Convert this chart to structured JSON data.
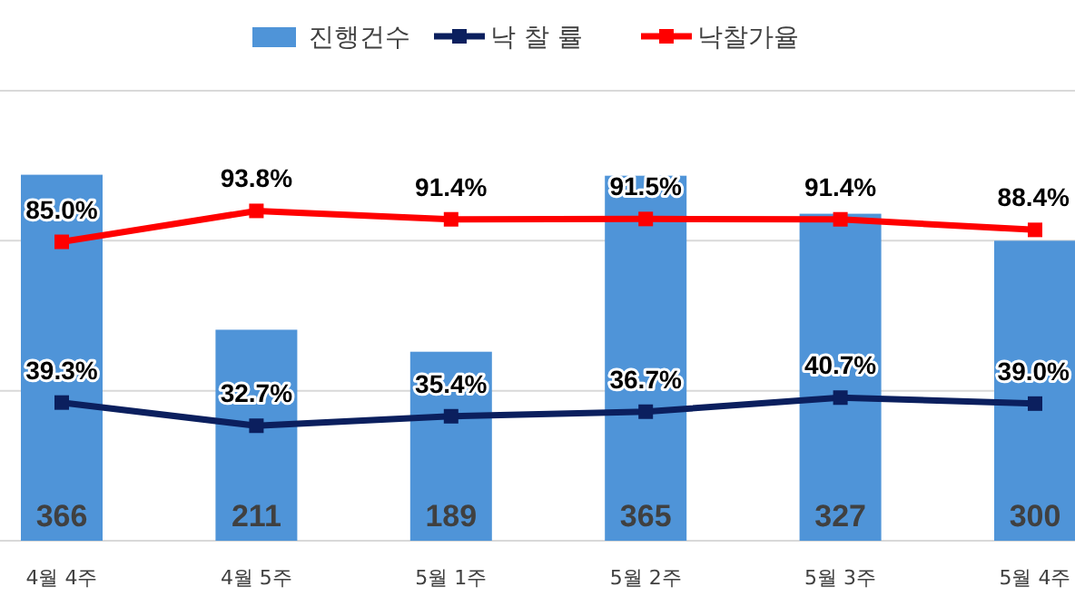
{
  "chart_data": {
    "type": "bar",
    "categories": [
      "4월 4주",
      "4월 5주",
      "5월 1주",
      "5월 2주",
      "5월 3주",
      "5월 4주"
    ],
    "series": [
      {
        "name": "진행건수",
        "color": "#4f94d8",
        "values": [
          366,
          211,
          189,
          365,
          327,
          300
        ]
      },
      {
        "name": "낙 찰 률",
        "type": "line",
        "axis": "y2",
        "color": "#0b1f5e",
        "values": [
          39.3,
          32.7,
          35.4,
          36.7,
          40.7,
          39.0
        ],
        "value_labels": [
          "39.3%",
          "32.7%",
          "35.4%",
          "36.7%",
          "40.7%",
          "39.0%"
        ]
      },
      {
        "name": "낙찰가율",
        "type": "line",
        "axis": "y2",
        "color": "#ff0000",
        "values": [
          85.0,
          93.8,
          91.4,
          91.5,
          91.4,
          88.4
        ],
        "value_labels": [
          "85.0%",
          "93.8%",
          "91.4%",
          "91.5%",
          "91.4%",
          "88.4%"
        ]
      }
    ],
    "ylim": [
      0,
      450
    ],
    "yticks": [
      {
        "value": 0,
        "label": null
      },
      {
        "value": 150,
        "label": null
      },
      {
        "value": 300,
        "label": null
      },
      {
        "value": 450,
        "label": null
      }
    ],
    "grid": "y",
    "tick_labels": "x",
    "legend": "top",
    "marker": "square",
    "data_labels": true
  }
}
